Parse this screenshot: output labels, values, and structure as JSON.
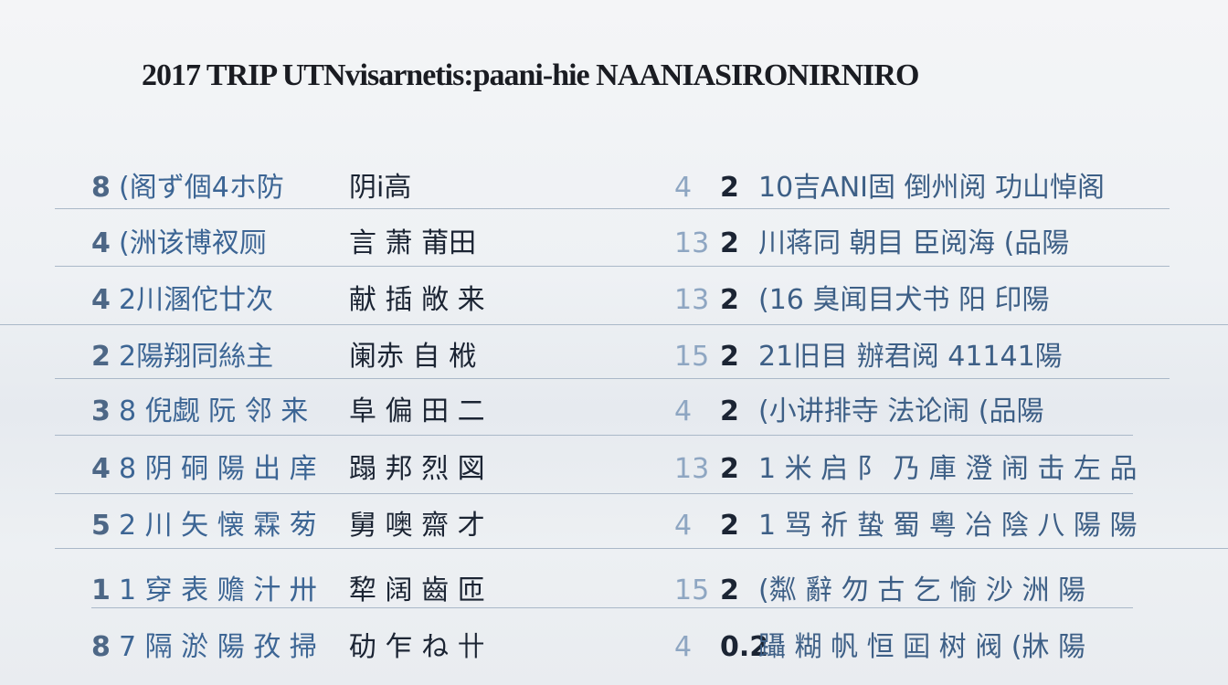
{
  "title": "2017 TRIP UTNvisarnetis:paani-hie NAANIASIRONIRNIRO",
  "rows": [
    {
      "n1": "8",
      "left": "(阁ず個4ホ防",
      "mid": "阴i高",
      "n2": "4",
      "m2": "2",
      "right": "10吉ANI固 倒州阅 功山悼阁"
    },
    {
      "n1": "4",
      "left": "(洲该博衩厕",
      "mid": "言 萧 莆田",
      "n2": "13",
      "m2": "2",
      "right": "川蒋同 朝目 臣阅海 (品陽"
    },
    {
      "n1": "4",
      "left": "2川溷佗廿次",
      "mid": "献 插 敞 来",
      "n2": "13",
      "m2": "2",
      "right": "(16 臭闻目犬书 阳 印陽"
    },
    {
      "n1": "2",
      "left": "2陽翔同絲主",
      "mid": "阑赤 自 栰",
      "n2": "15",
      "m2": "2",
      "right": "21旧目 辦君阅 41141陽"
    },
    {
      "n1": "3",
      "left": "8 倪觑 阮 邻 来",
      "mid": "阜 偏 田 二",
      "n2": "4",
      "m2": "2",
      "right": "(小讲排寺 法论闹 (品陽"
    },
    {
      "n1": "4",
      "left": "8 阴 硐 陽 出 庠",
      "mid": "蹋 邦 烈 図",
      "n2": "13",
      "m2": "2",
      "right": "1 米 启 阝 乃 庫 澄 闹 击 左 品"
    },
    {
      "n1": "5",
      "left": "2 川 矢 懐 霖 茐",
      "mid": "舅 噢 齋 才",
      "n2": "4",
      "m2": "2",
      "right": "1 骂 祈 蛰 蜀 粵 冶 陰 八 陽 陽"
    },
    {
      "n1": "1",
      "left": "1 穿 表 赡 汁 卅",
      "mid": "犂 阔 齒 匝",
      "n2": "15",
      "m2": "2",
      "right": "(粼 辭 勿 古 乞 愉 沙 洲 陽"
    },
    {
      "n1": "8",
      "left": "7 隔 淤 陽 孜 掃",
      "mid": "劯 乍 ね 卄",
      "n2": "4",
      "m2": "0.2",
      "right": "躡 糊 帆 恒 囸 树 阀 (牀 陽"
    }
  ]
}
